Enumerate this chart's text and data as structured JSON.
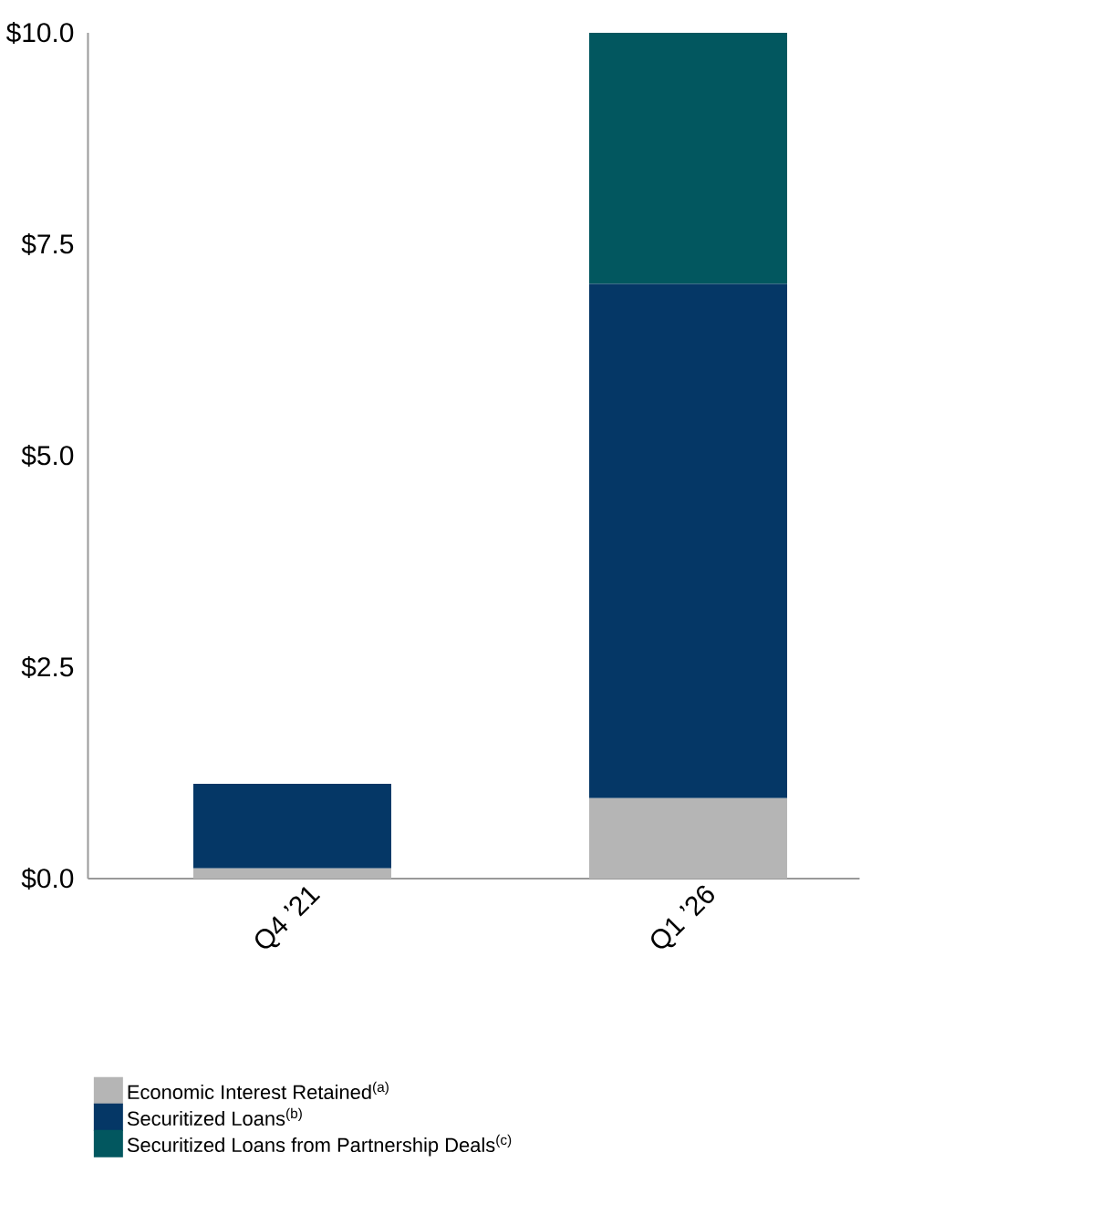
{
  "chart_data": {
    "type": "bar",
    "stacked": true,
    "categories": [
      "Q4 ’21",
      "Q1 ’26"
    ],
    "series": [
      {
        "name": "Economic Interest Retained$^{(a)}$",
        "color": "#b5b5b5",
        "values": [
          0.12,
          0.95
        ]
      },
      {
        "name": "Securitized Loans$^{(b)}$",
        "color": "#053766",
        "values": [
          1.0,
          6.08
        ]
      },
      {
        "name": "Securitized Loans from Partnership Deals$^{(c)}$",
        "color": "#02575f",
        "values": [
          0,
          2.97
        ]
      }
    ],
    "ylim": [
      0,
      10
    ],
    "yticks": [
      {
        "value": 0,
        "label": "$0.0"
      },
      {
        "value": 2.5,
        "label": "$2.5"
      },
      {
        "value": 5,
        "label": "$5.0"
      },
      {
        "value": 7.5,
        "label": "$7.5"
      },
      {
        "value": 10,
        "label": "$10.0"
      }
    ],
    "grid": false,
    "legend": "bottom"
  }
}
